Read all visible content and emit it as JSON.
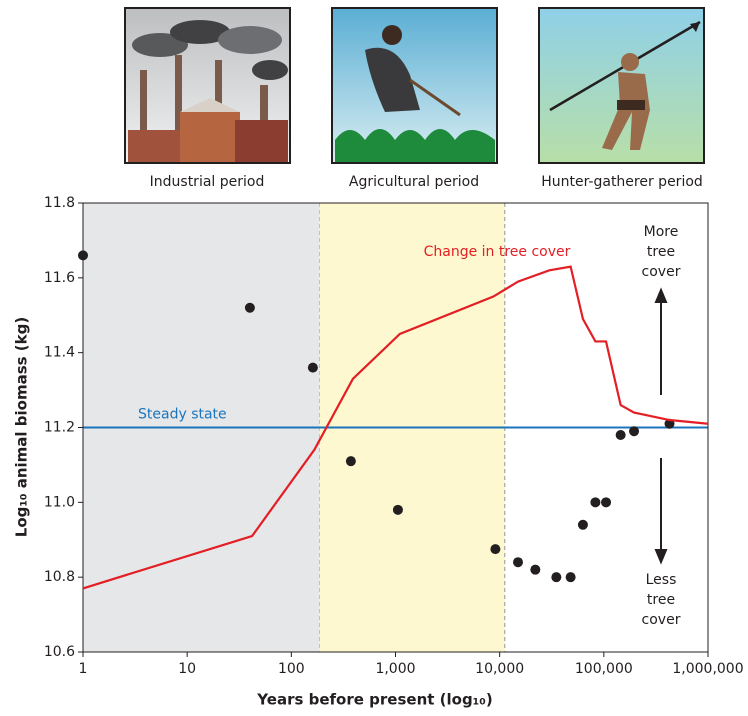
{
  "panels": [
    "Industrial period",
    "Agricultural period",
    "Hunter-gatherer period"
  ],
  "chart_data": {
    "type": "scatter",
    "x_label": "Years before present (log₁₀)",
    "y_label": "Log₁₀ animal biomass (kg)",
    "x_scale": "log",
    "xlim": [
      1,
      1000000
    ],
    "ylim": [
      10.6,
      11.8
    ],
    "xticks": [
      1,
      10,
      100,
      {
        "value": 1000,
        "label": "1,000"
      },
      {
        "value": 10000,
        "label": "10,000"
      },
      {
        "value": 100000,
        "label": "100,000"
      },
      {
        "value": 1000000,
        "label": "1,000,000"
      }
    ],
    "yticks": [
      10.6,
      10.8,
      {
        "value": 11.0,
        "label": "11.0"
      },
      11.2,
      11.4,
      11.6,
      11.8
    ],
    "regions": [
      {
        "from": 1,
        "to": 187,
        "color": "#e6e7e8"
      },
      {
        "from": 187,
        "to": 11200,
        "color": "#fdf8cf"
      }
    ],
    "reference_line": {
      "label": "Steady state",
      "value": 11.2,
      "color": "#1b75bc"
    },
    "more_label": [
      "More",
      "tree",
      "cover"
    ],
    "less_label": [
      "Less",
      "tree",
      "cover"
    ],
    "series": [
      {
        "type": "scatter",
        "color": "#231f20",
        "x": [
          1,
          40,
          161,
          373,
          1055,
          9100,
          15000,
          22000,
          35000,
          48000,
          63000,
          83000,
          105000,
          145000,
          195000,
          427000
        ],
        "values": [
          11.66,
          11.52,
          11.36,
          11.11,
          10.98,
          10.875,
          10.84,
          10.82,
          10.8,
          10.8,
          10.94,
          11.0,
          11.0,
          11.18,
          11.19,
          11.21
        ]
      },
      {
        "type": "line",
        "name": "Change in tree cover",
        "color": "#e31e24",
        "x": [
          1,
          42,
          166,
          390,
          1100,
          8700,
          15000,
          30000,
          48000,
          63000,
          83000,
          105000,
          145000,
          195000,
          427000,
          1000000
        ],
        "values": [
          10.77,
          10.91,
          11.14,
          11.33,
          11.45,
          11.55,
          11.59,
          11.62,
          11.63,
          11.49,
          11.43,
          11.43,
          11.26,
          11.24,
          11.22,
          11.21
        ]
      }
    ]
  }
}
